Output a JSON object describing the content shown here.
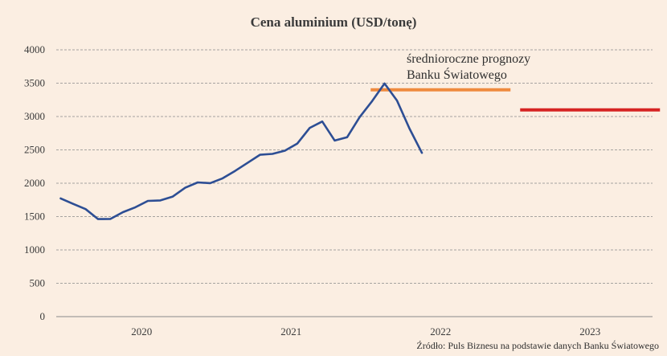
{
  "chart_data": {
    "type": "line",
    "title": "Cena aluminium (USD/tonę)",
    "annotation": [
      "średnioroczne prognozy",
      "Banku Światowego"
    ],
    "source": "Źródło: Puls Biznesu na podstawie danych Banku Światowego",
    "ylim": [
      0,
      4000
    ],
    "yticks": [
      "0",
      "500",
      "1000",
      "1500",
      "2000",
      "2500",
      "3000",
      "3500",
      "4000"
    ],
    "xticks": [
      "2020",
      "2021",
      "2022",
      "2023"
    ],
    "grid": true,
    "series": [
      {
        "values": [
          [
            "2019-12",
            1772
          ],
          [
            "2020-01",
            1690
          ],
          [
            "2020-02",
            1612
          ],
          [
            "2020-03",
            1463
          ],
          [
            "2020-04",
            1465
          ],
          [
            "2020-05",
            1566
          ],
          [
            "2020-06",
            1640
          ],
          [
            "2020-07",
            1735
          ],
          [
            "2020-08",
            1742
          ],
          [
            "2020-09",
            1800
          ],
          [
            "2020-10",
            1932
          ],
          [
            "2020-11",
            2012
          ],
          [
            "2020-12",
            2001
          ],
          [
            "2021-01",
            2074
          ],
          [
            "2021-02",
            2184
          ],
          [
            "2021-03",
            2305
          ],
          [
            "2021-04",
            2426
          ],
          [
            "2021-05",
            2440
          ],
          [
            "2021-06",
            2488
          ],
          [
            "2021-07",
            2595
          ],
          [
            "2021-08",
            2830
          ],
          [
            "2021-09",
            2925
          ],
          [
            "2021-10",
            2640
          ],
          [
            "2021-11",
            2690
          ],
          [
            "2021-12",
            2990
          ],
          [
            "2022-01",
            3230
          ],
          [
            "2022-02",
            3495
          ],
          [
            "2022-03",
            3240
          ],
          [
            "2022-04",
            2820
          ],
          [
            "2022-05",
            2455
          ]
        ],
        "color": "#2d4e94"
      }
    ],
    "forecasts": [
      {
        "period": "2022",
        "value": 3400,
        "color": "#ef8a3e"
      },
      {
        "period": "2023",
        "value": 3100,
        "color": "#d62323"
      }
    ]
  }
}
